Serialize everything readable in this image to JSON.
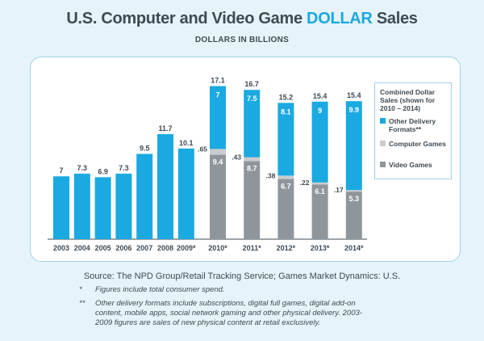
{
  "header": {
    "title_pre": "U.S. Computer and Video Game ",
    "title_highlight": "DOLLAR",
    "title_post": " Sales",
    "subtitle": "DOLLARS IN BILLIONS"
  },
  "colors": {
    "accent": "#1aa9e1",
    "computer": "#c9ccce",
    "video": "#8f969b"
  },
  "chart_data": {
    "type": "bar",
    "title": "U.S. Computer and Video Game DOLLAR Sales",
    "ylabel": "Dollars in billions",
    "ylim": [
      0,
      17.1
    ],
    "categories": [
      "2003",
      "2004",
      "2005",
      "2006",
      "2007",
      "2008",
      "2009*",
      "2010*",
      "2011*",
      "2012*",
      "2013*",
      "2014*"
    ],
    "totals": [
      "7",
      "7.3",
      "6.9",
      "7.3",
      "9.5",
      "11.7",
      "10.1",
      "17.1",
      "16.7",
      "15.2",
      "15.4",
      "15.4"
    ],
    "single_values": [
      7,
      7.3,
      6.9,
      7.3,
      9.5,
      11.7,
      10.1
    ],
    "series": [
      {
        "name": "Video Games",
        "values": [
          null,
          null,
          null,
          null,
          null,
          null,
          null,
          9.4,
          8.7,
          6.7,
          6.1,
          5.3
        ],
        "labels": [
          "",
          "",
          "",
          "",
          "",
          "",
          "",
          "9.4",
          "8.7",
          "6.7",
          "6.1",
          "5.3"
        ]
      },
      {
        "name": "Computer Games",
        "values": [
          null,
          null,
          null,
          null,
          null,
          null,
          null,
          0.65,
          0.43,
          0.38,
          0.22,
          0.17
        ],
        "labels": [
          "",
          "",
          "",
          "",
          "",
          "",
          "",
          ".65",
          ".43",
          ".38",
          ".22",
          ".17"
        ]
      },
      {
        "name": "Other Delivery Formats**",
        "values": [
          null,
          null,
          null,
          null,
          null,
          null,
          null,
          7,
          7.5,
          8.1,
          9,
          9.9
        ],
        "labels": [
          "",
          "",
          "",
          "",
          "",
          "",
          "",
          "7",
          "7.5",
          "8.1",
          "9",
          "9.9"
        ]
      }
    ]
  },
  "legend": {
    "title": "Combined Dollar Sales (shown for 2010 – 2014)",
    "items": [
      {
        "label": "Other Delivery Formats**"
      },
      {
        "label": "Computer Games"
      },
      {
        "label": "Video Games"
      }
    ]
  },
  "footer": {
    "source": "Source: The NPD Group/Retail Tracking Service; Games Market Dynamics: U.S.",
    "note1_mark": "*",
    "note1": "Figures include total consumer spend.",
    "note2_mark": "**",
    "note2": "Other delivery formats include subscriptions, digital full games, digital add-on content, mobile apps, social network gaming and other physical delivery. 2003-2009 figures are sales of new physical content at retail exclusively."
  }
}
